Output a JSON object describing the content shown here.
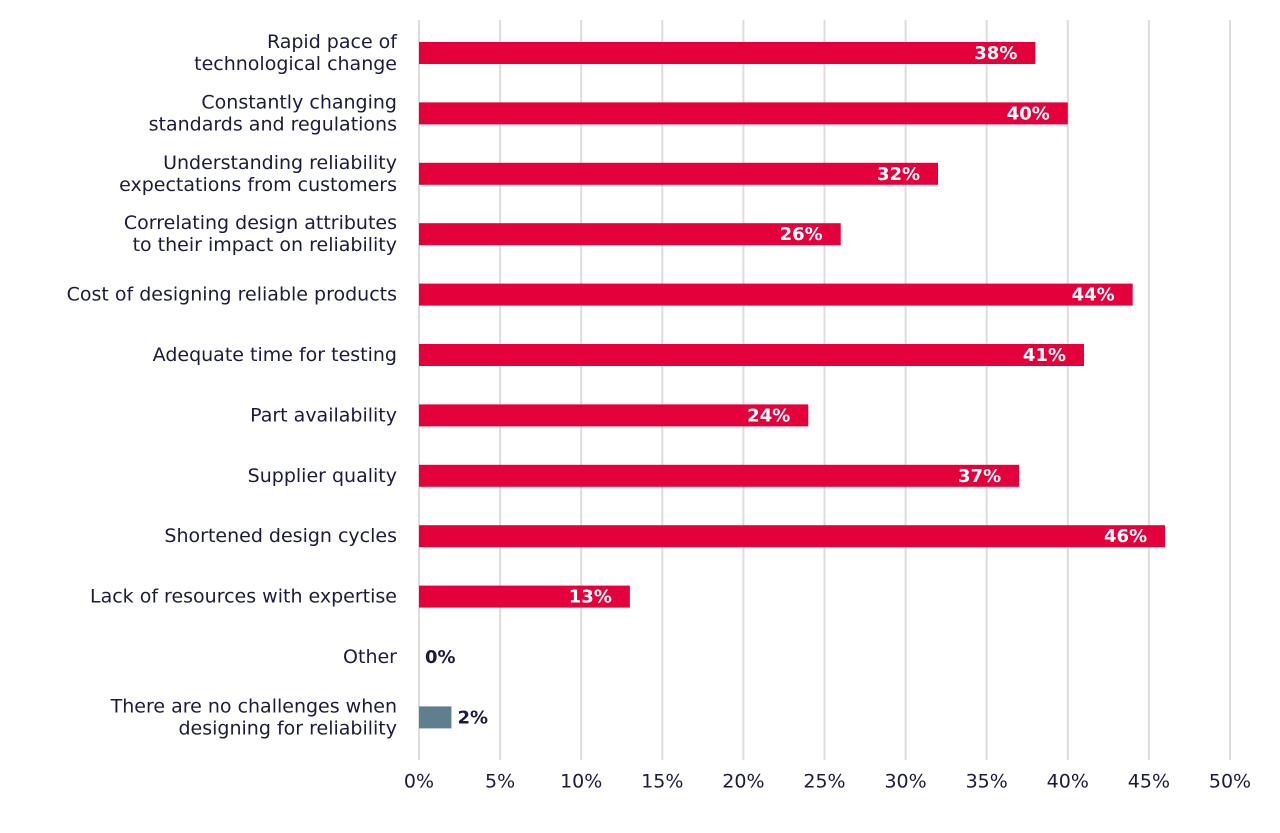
{
  "chart_data": {
    "type": "hbar",
    "categories": [
      [
        "Rapid pace of",
        "technological change"
      ],
      [
        "Constantly changing",
        "standards and regulations"
      ],
      [
        "Understanding reliability",
        "expectations from customers"
      ],
      [
        "Correlating design attributes",
        "to their impact on reliability"
      ],
      [
        "Cost of designing reliable products"
      ],
      [
        "Adequate time for testing"
      ],
      [
        "Part availability"
      ],
      [
        "Supplier quality"
      ],
      [
        "Shortened design cycles"
      ],
      [
        "Lack of resources with expertise"
      ],
      [
        "Other"
      ],
      [
        "There are no challenges when",
        "designing for reliability"
      ]
    ],
    "values": [
      38,
      40,
      32,
      26,
      44,
      41,
      24,
      37,
      46,
      13,
      0,
      2
    ],
    "value_labels": [
      "38%",
      "40%",
      "32%",
      "26%",
      "44%",
      "41%",
      "24%",
      "37%",
      "46%",
      "13%",
      "0%",
      "2%"
    ],
    "colors": [
      "#e4003b",
      "#e4003b",
      "#e4003b",
      "#e4003b",
      "#e4003b",
      "#e4003b",
      "#e4003b",
      "#e4003b",
      "#e4003b",
      "#e4003b",
      "#e4003b",
      "#5f7f91"
    ],
    "xlim": [
      0,
      50
    ],
    "xticks": [
      {
        "value": 0,
        "label": "0%"
      },
      {
        "value": 5,
        "label": "5%"
      },
      {
        "value": 10,
        "label": "10%"
      },
      {
        "value": 15,
        "label": "15%"
      },
      {
        "value": 20,
        "label": "20%"
      },
      {
        "value": 25,
        "label": "25%"
      },
      {
        "value": 30,
        "label": "30%"
      },
      {
        "value": 35,
        "label": "35%"
      },
      {
        "value": 40,
        "label": "40%"
      },
      {
        "value": 45,
        "label": "45%"
      },
      {
        "value": 50,
        "label": "50%"
      }
    ],
    "grid": true
  }
}
